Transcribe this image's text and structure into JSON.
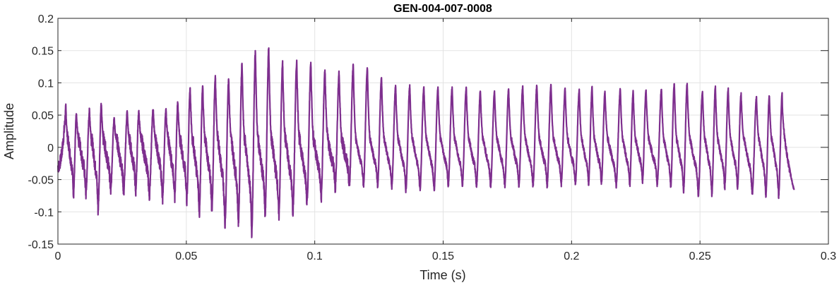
{
  "chart_data": {
    "type": "line",
    "title": "GEN-004-007-0008",
    "xlabel": "Time (s)",
    "ylabel": "Amplitude",
    "xlim": [
      0,
      0.3
    ],
    "ylim": [
      -0.15,
      0.2
    ],
    "grid": true,
    "line_color": "#7E2F8E",
    "x_ticks": [
      0,
      0.05,
      0.1,
      0.15,
      0.2,
      0.25,
      0.3
    ],
    "x_tick_labels": [
      "0",
      "0.05",
      "0.1",
      "0.15",
      "0.2",
      "0.25",
      "0.3"
    ],
    "y_ticks": [
      -0.15,
      -0.1,
      -0.05,
      0,
      0.05,
      0.1,
      0.15,
      0.2
    ],
    "y_tick_labels": [
      "-0.15",
      "-0.1",
      "-0.05",
      "0",
      "0.05",
      "0.1",
      "0.15",
      "0.2"
    ],
    "series": [
      {
        "name": "GEN-004-007-0008",
        "start": {
          "t": 0,
          "value": -0.03
        },
        "end": {
          "t": 0.2866,
          "value": -0.066
        },
        "cycle_peak_times": [
          0.0031,
          0.0072,
          0.0123,
          0.0169,
          0.0219,
          0.027,
          0.0315,
          0.0371,
          0.0421,
          0.0467,
          0.0515,
          0.0564,
          0.0613,
          0.0665,
          0.0717,
          0.0769,
          0.0821,
          0.0875,
          0.093,
          0.0985,
          0.104,
          0.1095,
          0.115,
          0.1205,
          0.126,
          0.1315,
          0.137,
          0.1425,
          0.148,
          0.1535,
          0.159,
          0.1645,
          0.17,
          0.1755,
          0.181,
          0.1865,
          0.192,
          0.1975,
          0.203,
          0.208,
          0.213,
          0.219,
          0.224,
          0.229,
          0.235,
          0.24,
          0.245,
          0.251,
          0.256,
          0.261,
          0.266,
          0.272,
          0.277,
          0.282
        ],
        "cycle_max": [
          0.061,
          0.05,
          0.057,
          0.066,
          0.045,
          0.055,
          0.055,
          0.058,
          0.058,
          0.07,
          0.092,
          0.094,
          0.11,
          0.107,
          0.129,
          0.148,
          0.153,
          0.13,
          0.132,
          0.129,
          0.118,
          0.115,
          0.126,
          0.123,
          0.108,
          0.095,
          0.095,
          0.093,
          0.093,
          0.092,
          0.092,
          0.087,
          0.086,
          0.089,
          0.094,
          0.096,
          0.096,
          0.091,
          0.089,
          0.093,
          0.086,
          0.09,
          0.087,
          0.088,
          0.09,
          0.1,
          0.098,
          0.086,
          0.093,
          0.09,
          0.083,
          0.077,
          0.08,
          0.084
        ],
        "cycle_min": [
          -0.07,
          -0.072,
          -0.096,
          -0.069,
          -0.069,
          -0.068,
          -0.074,
          -0.078,
          -0.077,
          -0.082,
          -0.1,
          -0.098,
          -0.118,
          -0.115,
          -0.13,
          -0.105,
          -0.106,
          -0.1,
          -0.088,
          -0.078,
          -0.062,
          -0.059,
          -0.06,
          -0.06,
          -0.062,
          -0.066,
          -0.066,
          -0.065,
          -0.059,
          -0.059,
          -0.06,
          -0.06,
          -0.06,
          -0.059,
          -0.059,
          -0.059,
          -0.057,
          -0.057,
          -0.056,
          -0.057,
          -0.06,
          -0.06,
          -0.053,
          -0.057,
          -0.06,
          -0.066,
          -0.072,
          -0.072,
          -0.062,
          -0.063,
          -0.072,
          -0.075,
          -0.075,
          -0.077,
          -0.066
        ]
      }
    ]
  }
}
